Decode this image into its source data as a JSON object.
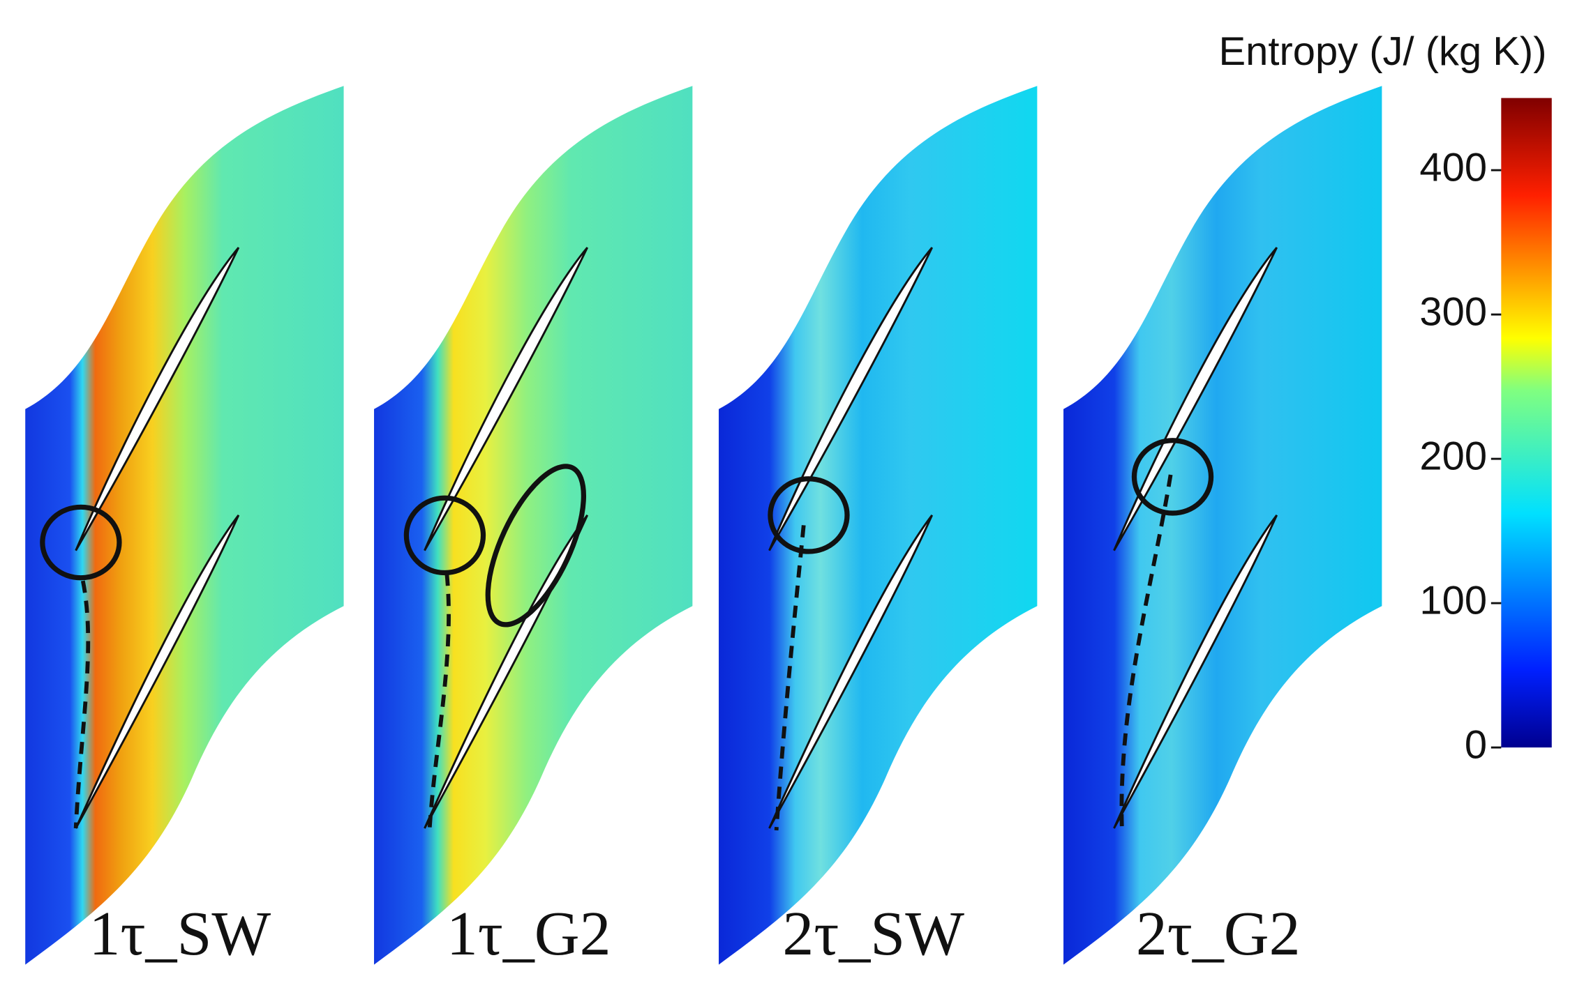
{
  "panels": [
    {
      "label": "1τ_SW"
    },
    {
      "label": "1τ_G2"
    },
    {
      "label": "2τ_SW"
    },
    {
      "label": "2τ_G2"
    }
  ],
  "colorbar": {
    "title": "Entropy (J/ (kg K))",
    "range": [
      0,
      450
    ],
    "ticks": [
      0,
      100,
      200,
      300,
      400
    ]
  }
}
